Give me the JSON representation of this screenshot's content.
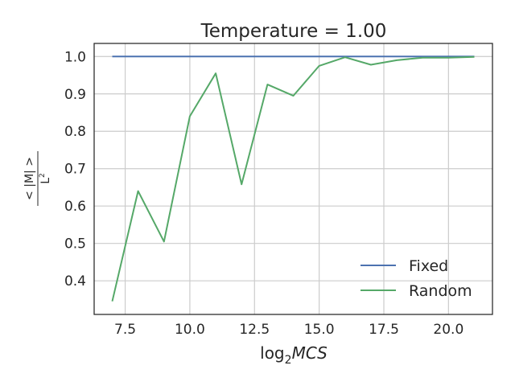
{
  "chart_data": {
    "type": "line",
    "title": "Temperature = 1.00",
    "xlabel_base": "log",
    "xlabel_sub": "2",
    "xlabel_var": "MCS",
    "ylabel_num": "< |M| >",
    "ylabel_den": "L",
    "ylabel_den_sup": "2",
    "xlim": [
      6.3,
      21.7
    ],
    "ylim": [
      0.31,
      1.035
    ],
    "xticks": [
      7.5,
      10.0,
      12.5,
      15.0,
      17.5,
      20.0
    ],
    "xtick_labels": [
      "7.5",
      "10.0",
      "12.5",
      "15.0",
      "17.5",
      "20.0"
    ],
    "yticks": [
      0.4,
      0.5,
      0.6,
      0.7,
      0.8,
      0.9,
      1.0
    ],
    "ytick_labels": [
      "0.4",
      "0.5",
      "0.6",
      "0.7",
      "0.8",
      "0.9",
      "1.0"
    ],
    "grid": true,
    "legend_position": "lower-right",
    "series": [
      {
        "name": "Fixed",
        "color": "#4c72b0",
        "x": [
          7,
          8,
          9,
          10,
          11,
          12,
          13,
          14,
          15,
          16,
          17,
          18,
          19,
          20,
          21
        ],
        "y": [
          1.0,
          1.0,
          1.0,
          1.0,
          1.0,
          1.0,
          1.0,
          1.0,
          1.0,
          1.0,
          1.0,
          1.0,
          1.0,
          1.0,
          1.0
        ]
      },
      {
        "name": "Random",
        "color": "#55a868",
        "x": [
          7,
          8,
          9,
          10,
          11,
          12,
          13,
          14,
          15,
          16,
          17,
          18,
          19,
          20,
          21
        ],
        "y": [
          0.345,
          0.64,
          0.505,
          0.84,
          0.955,
          0.658,
          0.925,
          0.895,
          0.975,
          0.998,
          0.978,
          0.99,
          0.997,
          0.997,
          0.999
        ]
      }
    ]
  }
}
